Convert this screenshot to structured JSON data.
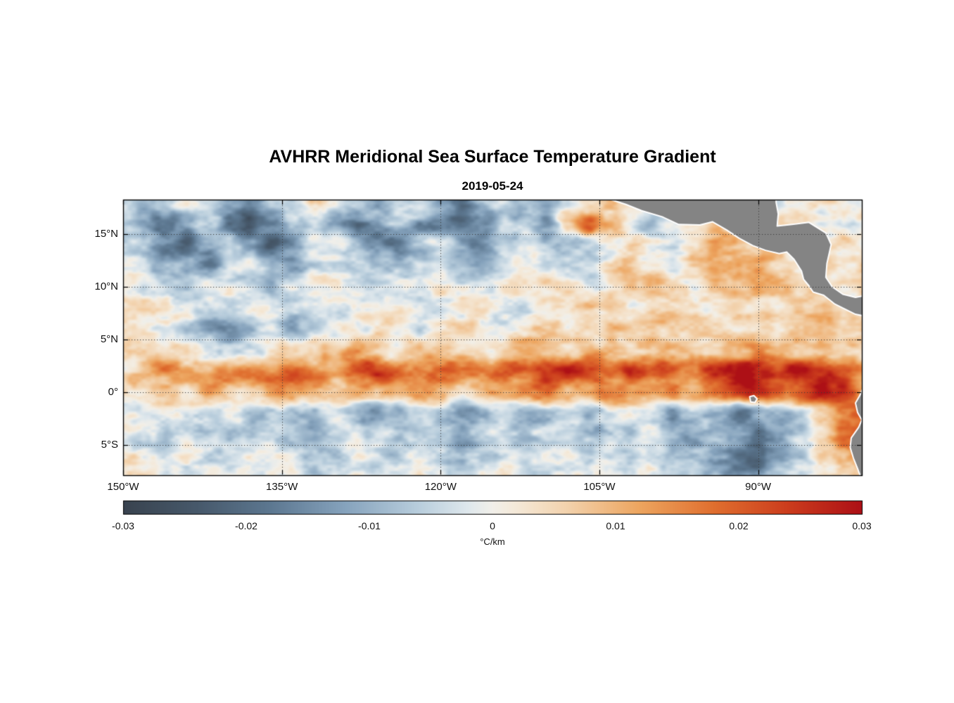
{
  "chart_data": {
    "type": "heatmap",
    "title": "AVHRR Meridional Sea Surface Temperature Gradient",
    "subtitle": "2019-05-24",
    "lon_range": [
      150,
      80.2
    ],
    "lat_range": [
      18.25,
      -7.83
    ],
    "xticks": [
      {
        "label": "150°W",
        "lon": 150
      },
      {
        "label": "135°W",
        "lon": 135
      },
      {
        "label": "120°W",
        "lon": 120
      },
      {
        "label": "105°W",
        "lon": 105
      },
      {
        "label": "90°W",
        "lon": 90
      }
    ],
    "yticks": [
      {
        "label": "15°N",
        "lat": 15
      },
      {
        "label": "10°N",
        "lat": 10
      },
      {
        "label": "5°N",
        "lat": 5
      },
      {
        "label": "0°",
        "lat": 0
      },
      {
        "label": "5°S",
        "lat": -5
      }
    ],
    "gridline_lats": [
      15,
      10,
      5,
      0,
      -5
    ],
    "gridline_lons": [
      150,
      135,
      120,
      105,
      90
    ],
    "grid": {
      "comment": "meridional SST gradient, units scale x values; lon = lon_start + c*lon_step (deg W), lat = lat_start + r*lat_step",
      "lat_start": 18,
      "lat_step": -2,
      "lon_start": 150,
      "lon_step": -2,
      "scale": 0.001,
      "values": [
        [
          -2,
          -6,
          -3,
          2,
          -4,
          -10,
          -14,
          -6,
          -2,
          3,
          -2,
          -8,
          -12,
          -5,
          0,
          -10,
          -16,
          -8,
          -3,
          -6,
          -12,
          -6,
          0,
          4,
          -2,
          -6,
          -3,
          1,
          3,
          -1,
          -4,
          -2,
          0,
          2,
          1,
          0
        ],
        [
          -8,
          -14,
          -20,
          -12,
          -6,
          -16,
          -24,
          -18,
          -8,
          -4,
          -10,
          -18,
          -10,
          -4,
          -12,
          -20,
          -22,
          -12,
          -4,
          -8,
          -14,
          6,
          20,
          8,
          -2,
          -8,
          -4,
          2,
          8,
          4,
          0,
          3,
          1,
          2,
          0,
          1
        ],
        [
          -4,
          -8,
          -16,
          -22,
          -10,
          -4,
          -12,
          -20,
          -14,
          -6,
          -2,
          -8,
          -14,
          -18,
          -8,
          -2,
          -10,
          -16,
          -6,
          -2,
          -6,
          -10,
          -4,
          2,
          6,
          -2,
          -6,
          2,
          10,
          12,
          6,
          8,
          4,
          2,
          3,
          2
        ],
        [
          -2,
          -4,
          -8,
          -12,
          -16,
          -6,
          -2,
          -8,
          -12,
          -4,
          0,
          -4,
          -8,
          -10,
          -4,
          0,
          -6,
          -10,
          -4,
          0,
          -3,
          -6,
          -2,
          3,
          8,
          4,
          -2,
          6,
          12,
          10,
          14,
          8,
          4,
          6,
          3,
          2
        ],
        [
          0,
          -2,
          -4,
          -6,
          -3,
          -1,
          -4,
          -6,
          -2,
          0,
          2,
          -2,
          -4,
          -2,
          0,
          3,
          -2,
          -4,
          -1,
          2,
          4,
          1,
          -2,
          2,
          6,
          10,
          6,
          3,
          8,
          6,
          10,
          12,
          6,
          4,
          2,
          3
        ],
        [
          1,
          2,
          0,
          -2,
          -4,
          -2,
          0,
          2,
          -2,
          -6,
          -3,
          0,
          2,
          4,
          1,
          -1,
          2,
          4,
          1,
          -2,
          2,
          5,
          8,
          4,
          1,
          5,
          8,
          5,
          2,
          6,
          4,
          2,
          6,
          8,
          4,
          2
        ],
        [
          2,
          0,
          -3,
          -6,
          -10,
          -14,
          -8,
          -4,
          -12,
          -8,
          -2,
          2,
          5,
          2,
          -2,
          3,
          6,
          3,
          0,
          4,
          7,
          4,
          8,
          6,
          3,
          6,
          4,
          8,
          5,
          3,
          6,
          3,
          5,
          7,
          5,
          3
        ],
        [
          3,
          5,
          2,
          0,
          -4,
          -6,
          -2,
          2,
          5,
          3,
          6,
          9,
          6,
          3,
          7,
          10,
          6,
          4,
          8,
          12,
          8,
          5,
          10,
          7,
          4,
          8,
          12,
          9,
          6,
          10,
          14,
          10,
          7,
          9,
          6,
          4
        ],
        [
          6,
          9,
          14,
          10,
          8,
          15,
          20,
          16,
          22,
          18,
          12,
          20,
          24,
          18,
          14,
          22,
          18,
          15,
          20,
          16,
          24,
          28,
          20,
          15,
          26,
          22,
          16,
          20,
          26,
          30,
          28,
          24,
          30,
          26,
          22,
          16
        ],
        [
          4,
          6,
          8,
          5,
          10,
          8,
          6,
          12,
          9,
          6,
          10,
          14,
          8,
          5,
          12,
          9,
          6,
          10,
          8,
          14,
          22,
          12,
          8,
          16,
          12,
          8,
          14,
          10,
          16,
          22,
          26,
          18,
          22,
          28,
          24,
          12
        ],
        [
          -2,
          -4,
          -1,
          -3,
          -6,
          -3,
          -8,
          -5,
          -10,
          -6,
          -3,
          -8,
          -12,
          -8,
          -4,
          -10,
          -14,
          -10,
          -6,
          -12,
          -8,
          -5,
          -10,
          -6,
          -3,
          -6,
          -10,
          -6,
          -12,
          -16,
          -10,
          -14,
          -8,
          6,
          18,
          24
        ],
        [
          -1,
          -3,
          -6,
          -2,
          -4,
          -8,
          -4,
          -2,
          -6,
          -10,
          -5,
          -2,
          -6,
          -9,
          -5,
          -8,
          -12,
          -7,
          -4,
          -8,
          -5,
          -2,
          -6,
          -4,
          -8,
          -5,
          -10,
          -14,
          -8,
          -12,
          -18,
          -12,
          -6,
          4,
          14,
          20
        ],
        [
          0,
          -2,
          -4,
          -1,
          -3,
          -5,
          -2,
          0,
          -4,
          -6,
          -3,
          -1,
          -4,
          -6,
          -3,
          -5,
          -8,
          -4,
          -2,
          -5,
          -3,
          -1,
          -4,
          -2,
          -5,
          -3,
          -8,
          -6,
          -12,
          -16,
          -22,
          -16,
          -8,
          2,
          10,
          14
        ],
        [
          1,
          0,
          -2,
          0,
          -2,
          -3,
          -1,
          1,
          -2,
          -4,
          -2,
          0,
          -3,
          -4,
          -2,
          -3,
          -5,
          -2,
          0,
          -3,
          -2,
          0,
          -2,
          -1,
          -3,
          -2,
          -5,
          -4,
          -8,
          -12,
          -16,
          -10,
          -4,
          2,
          6,
          8
        ]
      ]
    },
    "colormap": [
      {
        "v": -0.03,
        "c": "#39434f"
      },
      {
        "v": -0.024,
        "c": "#47596b"
      },
      {
        "v": -0.018,
        "c": "#5d7891"
      },
      {
        "v": -0.012,
        "c": "#86a3bd"
      },
      {
        "v": -0.006,
        "c": "#b9cedd"
      },
      {
        "v": -0.002,
        "c": "#dfe8ed"
      },
      {
        "v": 0.0,
        "c": "#f2f0ea"
      },
      {
        "v": 0.002,
        "c": "#f5e9d8"
      },
      {
        "v": 0.006,
        "c": "#f3d3ae"
      },
      {
        "v": 0.012,
        "c": "#eda55f"
      },
      {
        "v": 0.018,
        "c": "#e06f2f"
      },
      {
        "v": 0.024,
        "c": "#cc3d1d"
      },
      {
        "v": 0.03,
        "c": "#ad1016"
      }
    ],
    "colorbar": {
      "range": [
        -0.03,
        0.03
      ],
      "ticks": [
        {
          "label": "-0.03",
          "value": -0.03
        },
        {
          "label": "-0.02",
          "value": -0.02
        },
        {
          "label": "-0.01",
          "value": -0.01
        },
        {
          "label": "0",
          "value": 0
        },
        {
          "label": "0.01",
          "value": 0.01
        },
        {
          "label": "0.02",
          "value": 0.02
        },
        {
          "label": "0.03",
          "value": 0.03
        }
      ],
      "unit": "°C/km"
    },
    "land_color": "#848484",
    "coast_color": "#ffffff",
    "land_polygons": {
      "central_america": [
        [
          104.2,
          18.35
        ],
        [
          102.5,
          17.8
        ],
        [
          101.0,
          17.2
        ],
        [
          99.0,
          16.6
        ],
        [
          97.5,
          15.9
        ],
        [
          95.5,
          15.85
        ],
        [
          94.3,
          16.15
        ],
        [
          93.0,
          15.4
        ],
        [
          91.8,
          14.6
        ],
        [
          90.5,
          13.9
        ],
        [
          89.3,
          13.45
        ],
        [
          88.0,
          13.15
        ],
        [
          87.3,
          13.3
        ],
        [
          86.6,
          12.6
        ],
        [
          85.9,
          11.5
        ],
        [
          85.7,
          10.7
        ],
        [
          85.2,
          10.1
        ],
        [
          84.8,
          9.5
        ],
        [
          83.8,
          9.2
        ],
        [
          82.8,
          8.4
        ],
        [
          81.8,
          7.9
        ],
        [
          80.8,
          7.4
        ],
        [
          79.8,
          7.2
        ],
        [
          79.8,
          9.2
        ],
        [
          80.8,
          9.0
        ],
        [
          82.0,
          9.3
        ],
        [
          83.0,
          10.0
        ],
        [
          83.6,
          10.9
        ],
        [
          83.5,
          12.2
        ],
        [
          83.1,
          14.0
        ],
        [
          83.6,
          15.1
        ],
        [
          85.2,
          16.1
        ],
        [
          86.8,
          15.9
        ],
        [
          88.2,
          15.75
        ],
        [
          88.1,
          16.9
        ],
        [
          88.3,
          18.0
        ],
        [
          88.3,
          18.4
        ]
      ],
      "south_america": [
        [
          79.9,
          1.0
        ],
        [
          80.1,
          0.4
        ],
        [
          80.4,
          -0.3
        ],
        [
          80.8,
          -1.0
        ],
        [
          80.6,
          -1.9
        ],
        [
          80.2,
          -2.6
        ],
        [
          80.5,
          -3.3
        ],
        [
          81.2,
          -4.3
        ],
        [
          81.3,
          -5.2
        ],
        [
          81.0,
          -6.2
        ],
        [
          80.6,
          -7.2
        ],
        [
          80.2,
          -8.3
        ],
        [
          79.5,
          -8.3
        ],
        [
          79.5,
          1.0
        ]
      ],
      "galapagos": [
        [
          90.8,
          -0.4
        ],
        [
          90.4,
          -0.3
        ],
        [
          90.1,
          -0.6
        ],
        [
          90.3,
          -0.95
        ],
        [
          90.7,
          -0.9
        ]
      ]
    }
  }
}
